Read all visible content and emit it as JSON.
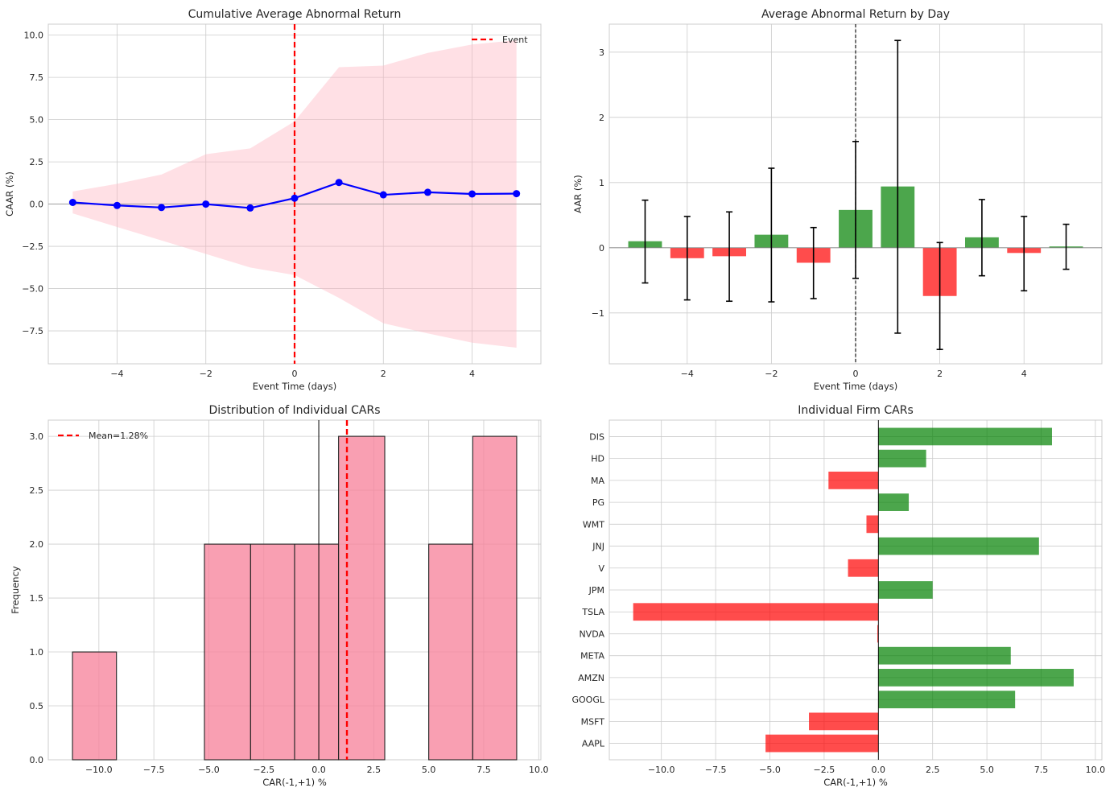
{
  "colors": {
    "grid": "#cccccc",
    "frame": "#cccccc",
    "line_blue": "#0000ff",
    "band_pink": "#ffb6c1",
    "event_red": "#ff0000",
    "bar_green": "#008000",
    "bar_red": "#ff0000",
    "hist_fill": "#f7849c",
    "black": "#000000"
  },
  "chart_data": [
    {
      "id": "caar",
      "type": "line",
      "title": "Cumulative Average Abnormal Return",
      "xlabel": "Event Time (days)",
      "ylabel": "CAAR (%)",
      "xlim": [
        -5.55,
        5.55
      ],
      "ylim": [
        -9.45,
        10.65
      ],
      "xticks": [
        -4,
        -2,
        0,
        2,
        4
      ],
      "xtick_labels": [
        "−4",
        "−2",
        "0",
        "2",
        "4"
      ],
      "yticks": [
        -7.5,
        -5.0,
        -2.5,
        0.0,
        2.5,
        5.0,
        7.5,
        10.0
      ],
      "ytick_labels": [
        "−7.5",
        "−5.0",
        "−2.5",
        "0.0",
        "2.5",
        "5.0",
        "7.5",
        "10.0"
      ],
      "x": [
        -5,
        -4,
        -3,
        -2,
        -1,
        0,
        1,
        2,
        3,
        4,
        5
      ],
      "y": [
        0.1,
        -0.08,
        -0.2,
        0.0,
        -0.23,
        0.35,
        1.28,
        0.55,
        0.7,
        0.6,
        0.62
      ],
      "band_upper": [
        0.75,
        1.2,
        1.75,
        2.95,
        3.3,
        4.9,
        8.1,
        8.2,
        8.95,
        9.45,
        9.7
      ],
      "band_lower": [
        -0.55,
        -1.35,
        -2.15,
        -2.95,
        -3.75,
        -4.2,
        -5.55,
        -7.05,
        -7.65,
        -8.2,
        -8.5
      ],
      "event_x": 0,
      "hline_y": 0,
      "legend": [
        {
          "label": "Event",
          "style": "dashed-red"
        }
      ],
      "legend_position": "top-right"
    },
    {
      "id": "aar",
      "type": "bar",
      "title": "Average Abnormal Return by Day",
      "xlabel": "Event Time (days)",
      "ylabel": "AAR (%)",
      "xlim": [
        -5.85,
        5.85
      ],
      "ylim": [
        -1.78,
        3.43
      ],
      "xticks": [
        -4,
        -2,
        0,
        2,
        4
      ],
      "xtick_labels": [
        "−4",
        "−2",
        "0",
        "2",
        "4"
      ],
      "yticks": [
        -1,
        0,
        1,
        2,
        3
      ],
      "ytick_labels": [
        "−1",
        "0",
        "1",
        "2",
        "3"
      ],
      "x": [
        -5,
        -4,
        -3,
        -2,
        -1,
        0,
        1,
        2,
        3,
        4,
        5
      ],
      "values": [
        0.1,
        -0.16,
        -0.13,
        0.2,
        -0.23,
        0.58,
        0.94,
        -0.74,
        0.16,
        -0.08,
        0.02
      ],
      "err_low": [
        -0.54,
        -0.8,
        -0.82,
        -0.83,
        -0.78,
        -0.47,
        -1.31,
        -1.56,
        -0.43,
        -0.66,
        -0.33
      ],
      "err_high": [
        0.73,
        0.48,
        0.55,
        1.22,
        0.31,
        1.63,
        3.18,
        0.08,
        0.74,
        0.48,
        0.36
      ],
      "bar_width": 0.8,
      "event_x": 0,
      "hline_y": 0
    },
    {
      "id": "hist",
      "type": "histogram",
      "title": "Distribution of Individual CARs",
      "xlabel": "CAR(-1,+1) %",
      "ylabel": "Frequency",
      "xlim": [
        -12.3,
        10.1
      ],
      "ylim": [
        0,
        3.15
      ],
      "xticks": [
        -10,
        -7.5,
        -5,
        -2.5,
        0,
        2.5,
        5,
        7.5,
        10
      ],
      "xtick_labels": [
        "−10.0",
        "−7.5",
        "−5.0",
        "−2.5",
        "0.0",
        "2.5",
        "5.0",
        "7.5",
        "10.0"
      ],
      "yticks": [
        0,
        0.5,
        1,
        1.5,
        2,
        2.5,
        3
      ],
      "ytick_labels": [
        "0.0",
        "0.5",
        "1.0",
        "1.5",
        "2.0",
        "2.5",
        "3.0"
      ],
      "bin_edges": [
        -11.2,
        -9.2,
        -7.2,
        -5.2,
        -3.1,
        -1.1,
        0.9,
        3.0,
        5.0,
        7.0,
        9.0
      ],
      "counts": [
        1,
        0,
        0,
        2,
        2,
        2,
        3,
        0,
        2,
        3
      ],
      "vline_zero": 0,
      "mean": 1.28,
      "legend": [
        {
          "label": "Mean=1.28%",
          "style": "dashed-red"
        }
      ],
      "legend_position": "top-left"
    },
    {
      "id": "firms",
      "type": "barh",
      "title": "Individual Firm CARs",
      "xlabel": "CAR(-1,+1) %",
      "xlim": [
        -12.4,
        10.3
      ],
      "xticks": [
        -10,
        -7.5,
        -5,
        -2.5,
        0,
        2.5,
        5,
        7.5,
        10
      ],
      "xtick_labels": [
        "−10.0",
        "−7.5",
        "−5.0",
        "−2.5",
        "0.0",
        "2.5",
        "5.0",
        "7.5",
        "10.0"
      ],
      "categories": [
        "AAPL",
        "MSFT",
        "GOOGL",
        "AMZN",
        "META",
        "NVDA",
        "TSLA",
        "JPM",
        "V",
        "JNJ",
        "WMT",
        "PG",
        "MA",
        "HD",
        "DIS"
      ],
      "values": [
        -5.2,
        -3.2,
        6.3,
        9.0,
        6.1,
        -0.05,
        -11.3,
        2.5,
        -1.4,
        7.4,
        -0.55,
        1.4,
        -2.3,
        2.2,
        8.0
      ],
      "bar_height": 0.8,
      "vline_x": 0
    }
  ]
}
